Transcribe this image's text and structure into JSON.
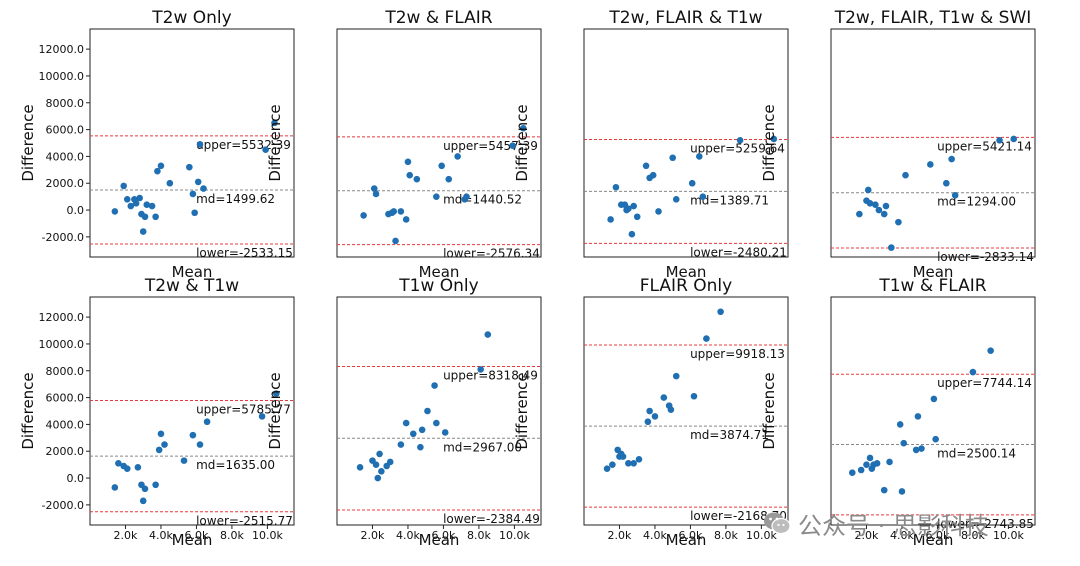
{
  "figure": {
    "watermark_text": "公众号 · 思影科技",
    "watermark_icon": "wechat-icon",
    "colors": {
      "point": "#1f6fb2",
      "limit_line": "#e8383d",
      "mean_line": "#888888",
      "frame": "#222222"
    }
  },
  "chart_data": [
    {
      "type": "scatter",
      "title": "T2w Only",
      "xlabel": "Mean",
      "ylabel": "Difference",
      "ylim": [
        -3500,
        13500
      ],
      "xlim": [
        0,
        11500
      ],
      "yticks": [
        -2000,
        0,
        2000,
        4000,
        6000,
        8000,
        10000,
        12000
      ],
      "ytick_labels": [
        "-2000.0",
        "0.0",
        "2000.0",
        "4000.0",
        "6000.0",
        "8000.0",
        "10000.0",
        "12000.0"
      ],
      "xticks": [],
      "xtick_labels": [],
      "lines": [
        {
          "label": "upper=5532.39",
          "y": 5532.39,
          "style": "limit"
        },
        {
          "label": "md=1499.62",
          "y": 1499.62,
          "style": "mean"
        },
        {
          "label": "lower=-2533.15",
          "y": -2533.15,
          "style": "limit"
        }
      ],
      "points": [
        [
          1400,
          -100
        ],
        [
          1900,
          1800
        ],
        [
          2100,
          800
        ],
        [
          2300,
          300
        ],
        [
          2500,
          800
        ],
        [
          2600,
          500
        ],
        [
          2800,
          900
        ],
        [
          2900,
          -300
        ],
        [
          3000,
          -1600
        ],
        [
          3100,
          -500
        ],
        [
          3200,
          400
        ],
        [
          3500,
          300
        ],
        [
          3700,
          -500
        ],
        [
          3800,
          2900
        ],
        [
          4000,
          3300
        ],
        [
          4500,
          2000
        ],
        [
          5600,
          3200
        ],
        [
          5800,
          1200
        ],
        [
          5900,
          -200
        ],
        [
          6100,
          2100
        ],
        [
          6200,
          4900
        ],
        [
          6400,
          1600
        ],
        [
          9900,
          4500
        ],
        [
          10400,
          6500
        ]
      ]
    },
    {
      "type": "scatter",
      "title": "T2w & FLAIR",
      "xlabel": "Mean",
      "ylabel": "Difference",
      "ylim": [
        -3500,
        13500
      ],
      "xlim": [
        0,
        11500
      ],
      "yticks": [],
      "ytick_labels": [],
      "xticks": [],
      "xtick_labels": [],
      "lines": [
        {
          "label": "upper=5457.39",
          "y": 5457.39,
          "style": "limit"
        },
        {
          "label": "md=1440.52",
          "y": 1440.52,
          "style": "mean"
        },
        {
          "label": "lower=-2576.34",
          "y": -2576.34,
          "style": "limit"
        }
      ],
      "points": [
        [
          1500,
          -400
        ],
        [
          2100,
          1600
        ],
        [
          2200,
          1200
        ],
        [
          2900,
          -300
        ],
        [
          3100,
          -200
        ],
        [
          3200,
          -100
        ],
        [
          3300,
          -2300
        ],
        [
          3600,
          -100
        ],
        [
          3900,
          -700
        ],
        [
          4000,
          3600
        ],
        [
          4100,
          2600
        ],
        [
          4500,
          2300
        ],
        [
          5600,
          1000
        ],
        [
          5900,
          3300
        ],
        [
          6300,
          2300
        ],
        [
          6800,
          4000
        ],
        [
          7200,
          800
        ],
        [
          7300,
          1000
        ],
        [
          9900,
          4800
        ],
        [
          10500,
          6100
        ]
      ]
    },
    {
      "type": "scatter",
      "title": "T2w, FLAIR & T1w",
      "xlabel": "Mean",
      "ylabel": "Difference",
      "ylim": [
        -3500,
        13500
      ],
      "xlim": [
        0,
        11500
      ],
      "yticks": [],
      "ytick_labels": [],
      "xticks": [],
      "xtick_labels": [],
      "lines": [
        {
          "label": "upper=5259.64",
          "y": 5259.64,
          "style": "limit"
        },
        {
          "label": "md=1389.71",
          "y": 1389.71,
          "style": "mean"
        },
        {
          "label": "lower=-2480.21",
          "y": -2480.21,
          "style": "limit"
        }
      ],
      "points": [
        [
          1500,
          -700
        ],
        [
          1800,
          1700
        ],
        [
          2100,
          400
        ],
        [
          2300,
          400
        ],
        [
          2400,
          0
        ],
        [
          2500,
          100
        ],
        [
          2700,
          -1800
        ],
        [
          2800,
          300
        ],
        [
          3000,
          -500
        ],
        [
          3500,
          3300
        ],
        [
          3700,
          2400
        ],
        [
          3900,
          2600
        ],
        [
          4200,
          -100
        ],
        [
          5000,
          3900
        ],
        [
          5200,
          800
        ],
        [
          6100,
          2000
        ],
        [
          6500,
          4000
        ],
        [
          6700,
          1000
        ],
        [
          8800,
          5200
        ],
        [
          10700,
          5300
        ]
      ]
    },
    {
      "type": "scatter",
      "title": "T2w, FLAIR, T1w & SWI",
      "xlabel": "Mean",
      "ylabel": "Difference",
      "ylim": [
        -3500,
        13500
      ],
      "xlim": [
        0,
        11500
      ],
      "yticks": [],
      "ytick_labels": [],
      "xticks": [],
      "xtick_labels": [],
      "lines": [
        {
          "label": "upper=5421.14",
          "y": 5421.14,
          "style": "limit"
        },
        {
          "label": "md=1294.00",
          "y": 1294.0,
          "style": "mean"
        },
        {
          "label": "lower=-2833.14",
          "y": -2833.14,
          "style": "limit"
        }
      ],
      "points": [
        [
          1600,
          -300
        ],
        [
          2000,
          700
        ],
        [
          2100,
          1500
        ],
        [
          2200,
          500
        ],
        [
          2500,
          400
        ],
        [
          2700,
          0
        ],
        [
          3000,
          -300
        ],
        [
          3100,
          300
        ],
        [
          3400,
          -2800
        ],
        [
          3800,
          -900
        ],
        [
          4200,
          2600
        ],
        [
          5600,
          3400
        ],
        [
          6500,
          2000
        ],
        [
          6800,
          3800
        ],
        [
          7000,
          1100
        ],
        [
          9500,
          5200
        ],
        [
          10300,
          5300
        ]
      ]
    },
    {
      "type": "scatter",
      "title": "T2w & T1w",
      "xlabel": "Mean",
      "ylabel": "Difference",
      "ylim": [
        -3500,
        13500
      ],
      "xlim": [
        0,
        11500
      ],
      "yticks": [
        -2000,
        0,
        2000,
        4000,
        6000,
        8000,
        10000,
        12000
      ],
      "ytick_labels": [
        "-2000.0",
        "0.0",
        "2000.0",
        "4000.0",
        "6000.0",
        "8000.0",
        "10000.0",
        "12000.0"
      ],
      "xticks": [
        2000,
        4000,
        6000,
        8000,
        10000
      ],
      "xtick_labels": [
        "2.0k",
        "4.0k",
        "6.0k",
        "8.0k",
        "10.0k"
      ],
      "lines": [
        {
          "label": "upper=5785.77",
          "y": 5785.77,
          "style": "limit"
        },
        {
          "label": "md=1635.00",
          "y": 1635.0,
          "style": "mean"
        },
        {
          "label": "lower=-2515.77",
          "y": -2515.77,
          "style": "limit"
        }
      ],
      "points": [
        [
          1400,
          -700
        ],
        [
          1600,
          1100
        ],
        [
          1900,
          900
        ],
        [
          2100,
          700
        ],
        [
          2700,
          800
        ],
        [
          2900,
          -500
        ],
        [
          3000,
          -1700
        ],
        [
          3100,
          -800
        ],
        [
          3700,
          -500
        ],
        [
          3900,
          2100
        ],
        [
          4000,
          3300
        ],
        [
          4200,
          2500
        ],
        [
          5300,
          1300
        ],
        [
          5800,
          3200
        ],
        [
          6200,
          2500
        ],
        [
          6600,
          4200
        ],
        [
          9700,
          4600
        ],
        [
          10500,
          6300
        ]
      ]
    },
    {
      "type": "scatter",
      "title": "T1w Only",
      "xlabel": "Mean",
      "ylabel": "Difference",
      "ylim": [
        -3500,
        13500
      ],
      "xlim": [
        0,
        11500
      ],
      "yticks": [],
      "ytick_labels": [],
      "xticks": [
        2000,
        4000,
        6000,
        8000,
        10000
      ],
      "xtick_labels": [
        "2.0k",
        "4.0k",
        "6.0k",
        "8.0k",
        "10.0k"
      ],
      "lines": [
        {
          "label": "upper=8318.49",
          "y": 8318.49,
          "style": "limit"
        },
        {
          "label": "md=2967.00",
          "y": 2967.0,
          "style": "mean"
        },
        {
          "label": "lower=-2384.49",
          "y": -2384.49,
          "style": "limit"
        }
      ],
      "points": [
        [
          1300,
          800
        ],
        [
          2000,
          1300
        ],
        [
          2200,
          1000
        ],
        [
          2300,
          0
        ],
        [
          2400,
          1800
        ],
        [
          2500,
          500
        ],
        [
          2800,
          900
        ],
        [
          3000,
          1200
        ],
        [
          3600,
          2500
        ],
        [
          3900,
          4100
        ],
        [
          4300,
          3300
        ],
        [
          4700,
          2300
        ],
        [
          4800,
          3600
        ],
        [
          5100,
          5000
        ],
        [
          5500,
          6900
        ],
        [
          5600,
          4100
        ],
        [
          6100,
          3400
        ],
        [
          8100,
          8100
        ],
        [
          8500,
          10700
        ]
      ]
    },
    {
      "type": "scatter",
      "title": "FLAIR Only",
      "xlabel": "Mean",
      "ylabel": "Difference",
      "ylim": [
        -3500,
        13500
      ],
      "xlim": [
        0,
        11500
      ],
      "yticks": [],
      "ytick_labels": [],
      "xticks": [
        2000,
        4000,
        6000,
        8000,
        10000
      ],
      "xtick_labels": [
        "2.0k",
        "4.0k",
        "6.0k",
        "8.0k",
        "10.0k"
      ],
      "lines": [
        {
          "label": "upper=9918.13",
          "y": 9918.13,
          "style": "limit"
        },
        {
          "label": "md=3874.71",
          "y": 3874.71,
          "style": "mean"
        },
        {
          "label": "lower=-2168.70",
          "y": -2168.7,
          "style": "limit"
        }
      ],
      "points": [
        [
          1300,
          700
        ],
        [
          1600,
          1000
        ],
        [
          1900,
          2100
        ],
        [
          2000,
          1600
        ],
        [
          2100,
          1800
        ],
        [
          2200,
          1600
        ],
        [
          2500,
          1100
        ],
        [
          2800,
          1100
        ],
        [
          3100,
          1400
        ],
        [
          3600,
          4200
        ],
        [
          3700,
          5000
        ],
        [
          4000,
          4600
        ],
        [
          4500,
          6000
        ],
        [
          4800,
          5400
        ],
        [
          4900,
          5100
        ],
        [
          5200,
          7600
        ],
        [
          6200,
          6100
        ],
        [
          6900,
          10400
        ],
        [
          7700,
          12400
        ]
      ]
    },
    {
      "type": "scatter",
      "title": "T1w & FLAIR",
      "xlabel": "Mean",
      "ylabel": "Difference",
      "ylim": [
        -3500,
        13500
      ],
      "xlim": [
        0,
        11500
      ],
      "yticks": [],
      "ytick_labels": [],
      "xticks": [
        2000,
        4000,
        6000,
        8000,
        10000
      ],
      "xtick_labels": [
        "2.0k",
        "4.0k",
        "6.0k",
        "8.0k",
        "10.0k"
      ],
      "lines": [
        {
          "label": "upper=7744.14",
          "y": 7744.14,
          "style": "limit"
        },
        {
          "label": "md=2500.14",
          "y": 2500.14,
          "style": "mean"
        },
        {
          "label": "lower=-2743.85",
          "y": -2743.85,
          "style": "limit"
        }
      ],
      "points": [
        [
          1200,
          400
        ],
        [
          1700,
          600
        ],
        [
          2000,
          1000
        ],
        [
          2200,
          1500
        ],
        [
          2300,
          700
        ],
        [
          2400,
          1000
        ],
        [
          2600,
          1100
        ],
        [
          3000,
          -900
        ],
        [
          3300,
          1200
        ],
        [
          3900,
          4000
        ],
        [
          4000,
          -1000
        ],
        [
          4100,
          2600
        ],
        [
          4800,
          2100
        ],
        [
          4900,
          4600
        ],
        [
          5100,
          2200
        ],
        [
          5800,
          5900
        ],
        [
          5900,
          2900
        ],
        [
          8000,
          7900
        ],
        [
          9000,
          9500
        ]
      ]
    }
  ]
}
